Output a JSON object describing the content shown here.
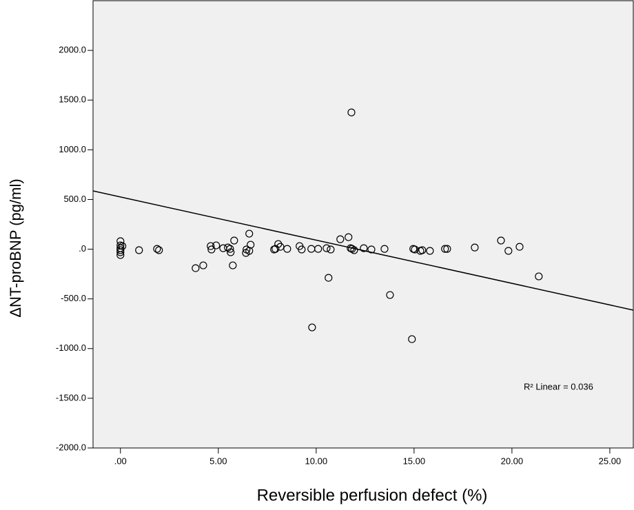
{
  "chart_data": {
    "type": "scatter",
    "x_label": "Reversible perfusion defect (%)",
    "y_label": "ΔNT-proBNP (pg/ml)",
    "annotation": "R² Linear = 0.036",
    "x": [
      0,
      0,
      0,
      0,
      0,
      0,
      0.1,
      0.95,
      1.87,
      1.97,
      3.84,
      4.23,
      4.61,
      4.65,
      4.89,
      5.25,
      5.49,
      5.6,
      5.63,
      5.74,
      5.81,
      6.41,
      6.44,
      6.58,
      6.58,
      6.65,
      7.85,
      7.92,
      8.06,
      8.17,
      8.52,
      9.15,
      9.26,
      9.75,
      9.79,
      10.1,
      10.53,
      10.63,
      10.74,
      11.23,
      11.65,
      11.76,
      11.8,
      11.83,
      11.94,
      12.43,
      12.82,
      13.49,
      13.77,
      14.89,
      14.96,
      15.04,
      15.32,
      15.42,
      15.81,
      16.58,
      16.69,
      18.1,
      19.44,
      19.82,
      20.39,
      21.37
    ],
    "values": [
      80,
      38,
      10,
      -10,
      -31,
      -59,
      31,
      -10,
      3,
      -10,
      -191,
      -163,
      31,
      -3,
      38,
      10,
      17,
      3,
      -31,
      -163,
      87,
      -38,
      -3,
      156,
      -17,
      45,
      -3,
      3,
      52,
      24,
      3,
      31,
      -3,
      3,
      -787,
      3,
      10,
      -288,
      -3,
      100,
      121,
      10,
      1376,
      3,
      -10,
      10,
      -3,
      3,
      -461,
      -905,
      3,
      -3,
      -17,
      -10,
      -17,
      3,
      3,
      17,
      87,
      -17,
      24,
      -274
    ],
    "regression": {
      "x": [
        -1.4,
        26.2
      ],
      "y": [
        586,
        -613
      ]
    },
    "xlim": [
      -1.4,
      26.2
    ],
    "ylim": [
      -2000,
      2500
    ],
    "xticks": [
      {
        "value": 0,
        "label": ".00"
      },
      {
        "value": 5,
        "label": "5.00"
      },
      {
        "value": 10,
        "label": "10.00"
      },
      {
        "value": 15,
        "label": "15.00"
      },
      {
        "value": 20,
        "label": "20.00"
      },
      {
        "value": 25,
        "label": "25.00"
      }
    ],
    "yticks": [
      {
        "value": -2000,
        "label": "-2000.0"
      },
      {
        "value": -1500,
        "label": "-1500.0"
      },
      {
        "value": -1000,
        "label": "-1000.0"
      },
      {
        "value": -500,
        "label": "-500.0"
      },
      {
        "value": 0,
        "label": ".0"
      },
      {
        "value": 500,
        "label": "500.0"
      },
      {
        "value": 1000,
        "label": "1000.0"
      },
      {
        "value": 1500,
        "label": "1500.0"
      },
      {
        "value": 2000,
        "label": "2000.0"
      }
    ],
    "background": "#f0f0f0",
    "marker_color": "#000000"
  }
}
